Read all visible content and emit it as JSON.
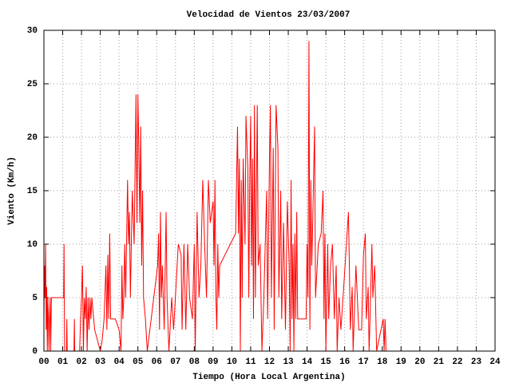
{
  "chart_data": {
    "type": "line",
    "title": "Velocidad de Vientos 23/03/2007",
    "x_label": "Tiempo (Hora Local Argentina)",
    "y_label": "Viento (Km/h)",
    "xlim": [
      0,
      24
    ],
    "ylim": [
      0,
      30
    ],
    "xticks": [
      {
        "value": 0,
        "label": "00"
      },
      {
        "value": 1,
        "label": "01"
      },
      {
        "value": 2,
        "label": "02"
      },
      {
        "value": 3,
        "label": "03"
      },
      {
        "value": 4,
        "label": "04"
      },
      {
        "value": 5,
        "label": "05"
      },
      {
        "value": 6,
        "label": "06"
      },
      {
        "value": 7,
        "label": "07"
      },
      {
        "value": 8,
        "label": "08"
      },
      {
        "value": 9,
        "label": "09"
      },
      10,
      11,
      12,
      13,
      14,
      15,
      16,
      17,
      18,
      19,
      20,
      21,
      22,
      23,
      24
    ],
    "yticks": [
      0,
      5,
      10,
      15,
      20,
      25,
      30
    ],
    "grid": true,
    "x": [
      0.0,
      0.03,
      0.06,
      0.09,
      0.12,
      0.15,
      0.18,
      0.21,
      0.24,
      0.27,
      0.3,
      0.33,
      0.36,
      0.4,
      0.6,
      1.05,
      1.07,
      1.1,
      1.2,
      1.22,
      1.24,
      1.6,
      1.62,
      1.64,
      1.9,
      1.95,
      2.0,
      2.05,
      2.1,
      2.15,
      2.2,
      2.25,
      2.3,
      2.35,
      2.4,
      2.45,
      2.5,
      2.55,
      2.7,
      2.85,
      3.0,
      3.1,
      3.2,
      3.3,
      3.35,
      3.4,
      3.45,
      3.5,
      3.55,
      3.8,
      4.0,
      4.1,
      4.15,
      4.2,
      4.25,
      4.3,
      4.35,
      4.45,
      4.5,
      4.55,
      4.6,
      4.7,
      4.8,
      4.9,
      4.95,
      5.0,
      5.05,
      5.1,
      5.15,
      5.2,
      5.25,
      5.3,
      5.4,
      5.5,
      6.05,
      6.1,
      6.15,
      6.2,
      6.25,
      6.3,
      6.4,
      6.5,
      6.55,
      6.65,
      6.8,
      6.9,
      7.15,
      7.3,
      7.35,
      7.45,
      7.55,
      7.65,
      7.75,
      7.9,
      8.0,
      8.05,
      8.15,
      8.25,
      8.35,
      8.45,
      8.55,
      8.65,
      8.75,
      8.85,
      9.0,
      9.05,
      9.1,
      9.15,
      9.2,
      9.25,
      9.3,
      9.35,
      10.2,
      10.3,
      10.35,
      10.4,
      10.45,
      10.5,
      10.55,
      10.6,
      10.7,
      10.75,
      10.85,
      10.9,
      10.95,
      11.0,
      11.05,
      11.1,
      11.15,
      11.2,
      11.25,
      11.35,
      11.4,
      11.5,
      11.6,
      11.7,
      11.85,
      11.9,
      12.0,
      12.05,
      12.1,
      12.2,
      12.25,
      12.35,
      12.45,
      12.5,
      12.6,
      12.65,
      12.75,
      12.85,
      12.95,
      13.05,
      13.1,
      13.15,
      13.2,
      13.25,
      13.3,
      13.35,
      13.4,
      13.45,
      13.5,
      13.95,
      14.0,
      14.05,
      14.1,
      14.15,
      14.2,
      14.25,
      14.3,
      14.4,
      14.45,
      14.6,
      14.75,
      14.85,
      14.9,
      14.95,
      15.0,
      15.1,
      15.15,
      15.25,
      15.35,
      15.45,
      15.55,
      15.6,
      15.7,
      15.8,
      15.95,
      16.2,
      16.25,
      16.3,
      16.4,
      16.45,
      16.6,
      16.75,
      16.9,
      17.0,
      17.1,
      17.15,
      17.25,
      17.3,
      17.35,
      17.45,
      17.5,
      17.6,
      17.7,
      18.05,
      18.1,
      18.15,
      18.2
    ],
    "series": [
      {
        "name": "Viento",
        "color": "#ff0000",
        "values": [
          3,
          8,
          5,
          10,
          2,
          6,
          0,
          5,
          3,
          0,
          3,
          5,
          0,
          5,
          5,
          5,
          10,
          0,
          0,
          3,
          0,
          0,
          3,
          0,
          0,
          3,
          5,
          8,
          0,
          5,
          3,
          6,
          0,
          5,
          2,
          5,
          3,
          5,
          2,
          1,
          0,
          1,
          3,
          8,
          2,
          9,
          3,
          11,
          3,
          3,
          2,
          0,
          8,
          3,
          5,
          10,
          5,
          16,
          10,
          13,
          5,
          15,
          10,
          24,
          12,
          24,
          19,
          12,
          21,
          8,
          15,
          5,
          3,
          0,
          8,
          11,
          2,
          13,
          5,
          8,
          2,
          13,
          5,
          0,
          5,
          2,
          10,
          9,
          2,
          10,
          2,
          10,
          5,
          3,
          10,
          0,
          13,
          5,
          8,
          16,
          10,
          5,
          16,
          12,
          14,
          8,
          16,
          5,
          2,
          10,
          5,
          8,
          11,
          21,
          11,
          18,
          0,
          16,
          5,
          18,
          10,
          22,
          17,
          5,
          16,
          22,
          8,
          18,
          3,
          23,
          5,
          23,
          8,
          10,
          0,
          5,
          15,
          3,
          18,
          23,
          5,
          19,
          2,
          23,
          19,
          5,
          15,
          3,
          12,
          2,
          14,
          8,
          0,
          16,
          3,
          10,
          0,
          11,
          3,
          13,
          3,
          3,
          10,
          5,
          29,
          2,
          16,
          8,
          12,
          21,
          5,
          10,
          11,
          15,
          3,
          11,
          0,
          10,
          3,
          8,
          10,
          3,
          8,
          0,
          5,
          2,
          6,
          13,
          8,
          2,
          6,
          0,
          8,
          2,
          2,
          9,
          11,
          3,
          6,
          0,
          3,
          10,
          5,
          8,
          0,
          3,
          0,
          3,
          0
        ]
      }
    ]
  }
}
